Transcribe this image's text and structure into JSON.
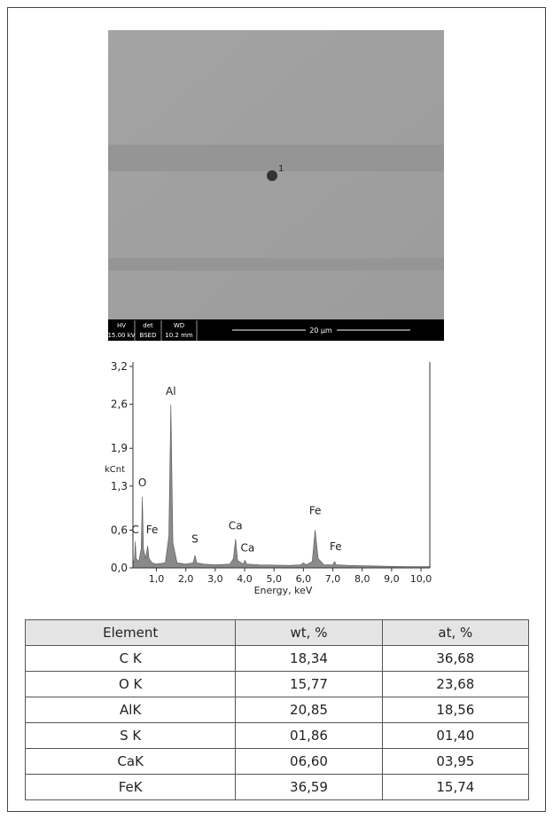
{
  "sem_image": {
    "info": [
      {
        "name": "HV",
        "value": "15.00 kV"
      },
      {
        "name": "det",
        "value": "BSED"
      },
      {
        "name": "WD",
        "value": "10.2 mm"
      }
    ],
    "scale_bar": "20 µm",
    "marker": "1"
  },
  "chart_data": {
    "type": "area",
    "ylabel": "kCnt",
    "xlabel": "Energy, keV",
    "color": "#8a8a8a",
    "xlim": [
      0.2,
      10.3
    ],
    "ylim": [
      0,
      3.2
    ],
    "xticks": [
      {
        "value": 1.0,
        "label": "1,0"
      },
      {
        "value": 2.0,
        "label": "2,0"
      },
      {
        "value": 3.0,
        "label": "3,0"
      },
      {
        "value": 4.0,
        "label": "4,0"
      },
      {
        "value": 5.0,
        "label": "5,0"
      },
      {
        "value": 6.0,
        "label": "6,0"
      },
      {
        "value": 7.0,
        "label": "7,0"
      },
      {
        "value": 8.0,
        "label": "8,0"
      },
      {
        "value": 9.0,
        "label": "9,0"
      },
      {
        "value": 10.0,
        "label": "10,0"
      }
    ],
    "yticks": [
      {
        "value": 0.0,
        "label": "0,0"
      },
      {
        "value": 0.6,
        "label": "0,6"
      },
      {
        "value": 1.3,
        "label": "1,3"
      },
      {
        "value": 1.9,
        "label": "1,9"
      },
      {
        "value": 2.6,
        "label": "2,6"
      },
      {
        "value": 3.2,
        "label": "3,2"
      }
    ],
    "x": [
      0.2,
      0.25,
      0.28,
      0.31,
      0.4,
      0.48,
      0.52,
      0.56,
      0.63,
      0.7,
      0.75,
      0.85,
      1.0,
      1.3,
      1.42,
      1.49,
      1.56,
      1.7,
      2.0,
      2.25,
      2.31,
      2.37,
      2.6,
      3.0,
      3.5,
      3.62,
      3.69,
      3.76,
      3.95,
      4.01,
      4.07,
      4.5,
      5.5,
      5.9,
      6.0,
      6.1,
      6.3,
      6.4,
      6.5,
      6.7,
      7.0,
      7.06,
      7.12,
      7.5,
      8.5,
      9.5,
      10.3
    ],
    "values": [
      0.05,
      0.15,
      0.42,
      0.15,
      0.1,
      0.3,
      1.13,
      0.3,
      0.15,
      0.35,
      0.15,
      0.08,
      0.06,
      0.08,
      0.5,
      2.6,
      0.4,
      0.08,
      0.06,
      0.08,
      0.2,
      0.08,
      0.06,
      0.05,
      0.06,
      0.15,
      0.46,
      0.12,
      0.06,
      0.12,
      0.06,
      0.05,
      0.04,
      0.05,
      0.08,
      0.05,
      0.1,
      0.6,
      0.15,
      0.05,
      0.05,
      0.1,
      0.05,
      0.04,
      0.03,
      0.02,
      0.02
    ],
    "annotations": [
      {
        "text": "C",
        "x": 0.28,
        "y": 0.55
      },
      {
        "text": "Fe",
        "x": 0.85,
        "y": 0.55
      },
      {
        "text": "O",
        "x": 0.52,
        "y": 1.3
      },
      {
        "text": "Al",
        "x": 1.49,
        "y": 2.75
      },
      {
        "text": "S",
        "x": 2.31,
        "y": 0.4
      },
      {
        "text": "Ca",
        "x": 3.69,
        "y": 0.61
      },
      {
        "text": "Ca",
        "x": 4.1,
        "y": 0.26
      },
      {
        "text": "Fe",
        "x": 6.4,
        "y": 0.85
      },
      {
        "text": "Fe",
        "x": 7.1,
        "y": 0.28
      }
    ]
  },
  "table": {
    "header": [
      "Element",
      "wt, %",
      "at, %"
    ],
    "rows": [
      [
        "C K",
        "18,34",
        "36,68"
      ],
      [
        "O K",
        "15,77",
        "23,68"
      ],
      [
        "AlK",
        "20,85",
        "18,56"
      ],
      [
        "S K",
        "01,86",
        "01,40"
      ],
      [
        "CaK",
        "06,60",
        "03,95"
      ],
      [
        "FeK",
        "36,59",
        "15,74"
      ]
    ]
  }
}
